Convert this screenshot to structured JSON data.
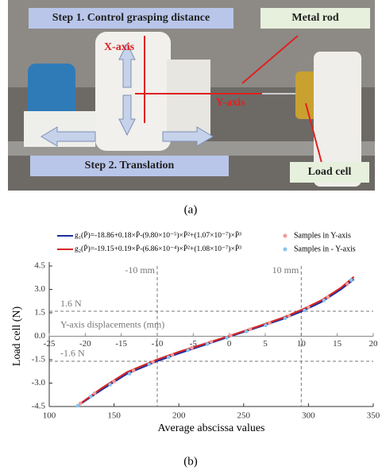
{
  "panel_a": {
    "step1": "Step 1. Control grasping distance",
    "metal_rod": "Metal rod",
    "x_axis": "X-axis",
    "y_axis": "Y-axis",
    "step2": "Step 2. Translation",
    "load_cell": "Load cell",
    "caption": "(a)"
  },
  "chart_data": {
    "type": "line",
    "xlabel": "Average abscissa values",
    "ylabel": "Load cell (N)",
    "xlim": [
      100,
      350
    ],
    "xticks": [
      100,
      150,
      200,
      250,
      300,
      350
    ],
    "ylim": [
      -4.5,
      4.5
    ],
    "yticks": [
      4.5,
      {
        "value": 3,
        "label": "3.0"
      },
      1.5,
      {
        "value": 0,
        "label": "0.0"
      },
      -1.5,
      {
        "value": -3,
        "label": "-3.0"
      },
      -4.5
    ],
    "x2label": "Y-axis displacements (mm)",
    "x2lim": [
      -25,
      20
    ],
    "x2ticks": [
      -25,
      -20,
      -15,
      -10,
      -5,
      0,
      5,
      10,
      15,
      20
    ],
    "reference_lines": [
      {
        "axis": "x2",
        "value": -10,
        "label": "-10 mm"
      },
      {
        "axis": "x2",
        "value": 10,
        "label": "10 mm"
      },
      {
        "axis": "y",
        "value": 1.6,
        "label": "1.6 N"
      },
      {
        "axis": "y",
        "value": -1.6,
        "label": "-1.6 N"
      }
    ],
    "series": [
      {
        "name": "g₁(P̄)=-18.86+0.18×P̄-(9.80×10⁻⁵)×P̄²+(1.07×10⁻⁷)×P̄³",
        "type": "line",
        "color": "#1a2f9e",
        "x": [
          122,
          140,
          160,
          183,
          200,
          220,
          240,
          260,
          280,
          295,
          310,
          325,
          335
        ],
        "values": [
          -4.45,
          -3.45,
          -2.4,
          -1.6,
          -1.1,
          -0.55,
          0,
          0.55,
          1.1,
          1.6,
          2.2,
          3.0,
          3.65
        ]
      },
      {
        "name": "g₂(P̄)=-19.15+0.19×P̄-(6.86×10⁻⁴)×P̄²+(1.08×10⁻⁷)×P̄³",
        "type": "line",
        "color": "#d62728",
        "x": [
          125,
          140,
          160,
          183,
          200,
          220,
          240,
          260,
          280,
          295,
          310,
          325,
          335
        ],
        "values": [
          -4.25,
          -3.35,
          -2.3,
          -1.5,
          -1.0,
          -0.48,
          0.05,
          0.6,
          1.18,
          1.7,
          2.3,
          3.1,
          3.8
        ]
      },
      {
        "name": "Samples in Y-axis",
        "type": "scatter",
        "color": "#f29a9a",
        "x": [
          124,
          135,
          150,
          165,
          180,
          195,
          210,
          225,
          240,
          255,
          270,
          285,
          300,
          315,
          330
        ],
        "values": [
          -4.3,
          -3.65,
          -2.9,
          -2.2,
          -1.65,
          -1.2,
          -0.75,
          -0.35,
          0.05,
          0.45,
          0.85,
          1.3,
          1.85,
          2.5,
          3.35
        ]
      },
      {
        "name": "Samples in - Y-axis",
        "type": "scatter",
        "color": "#86c3ee",
        "x": [
          122,
          132,
          147,
          162,
          177,
          192,
          207,
          222,
          237,
          252,
          267,
          282,
          297,
          312,
          333
        ],
        "values": [
          -4.45,
          -3.85,
          -3.1,
          -2.4,
          -1.8,
          -1.35,
          -0.9,
          -0.5,
          -0.1,
          0.3,
          0.7,
          1.15,
          1.65,
          2.3,
          3.6
        ]
      }
    ]
  },
  "caption_b": "(b)"
}
